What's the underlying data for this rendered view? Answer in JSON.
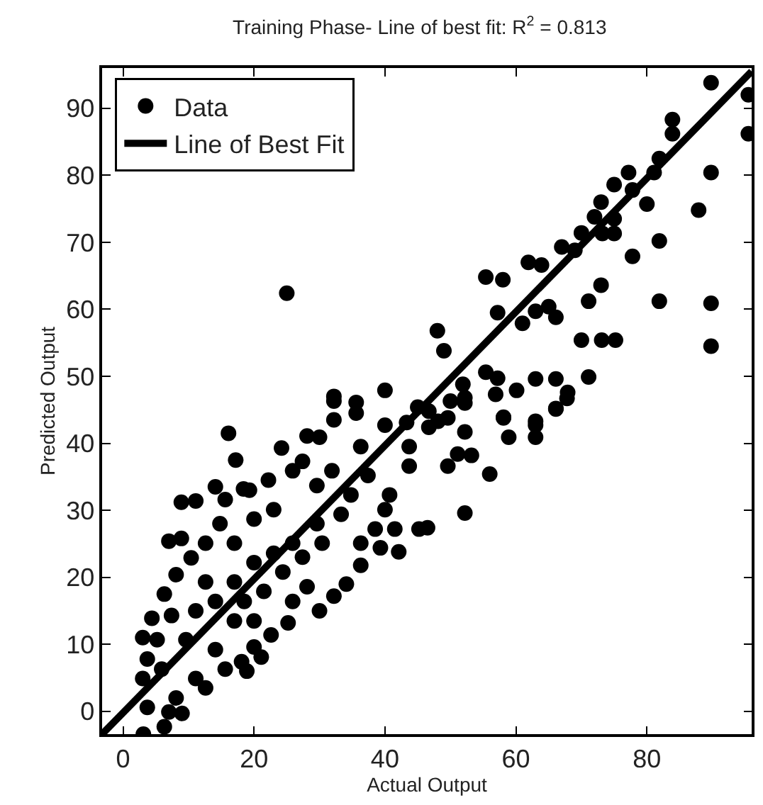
{
  "chart_data": {
    "type": "scatter",
    "title": "Training Phase- Line of best fit: R$^{2}$ = 0.813",
    "xlabel": "Actual Output",
    "ylabel": "Predicted Output",
    "xlim": [
      -3.2,
      96
    ],
    "ylim": [
      -3.4,
      96
    ],
    "xticks": [
      0,
      20,
      40,
      60,
      80
    ],
    "yticks": [
      0,
      10,
      20,
      30,
      40,
      50,
      60,
      70,
      80,
      90
    ],
    "legend": "top left",
    "series": [
      {
        "name": "Data",
        "color": "#000000",
        "marker": "circle",
        "x": [
          89.8,
          95.5,
          95.5,
          83.9,
          83.9,
          81.9,
          81.1,
          77.2,
          89.8,
          75,
          77.8,
          80,
          87.9,
          73,
          72,
          75,
          73.2,
          75,
          70,
          69,
          67,
          81.9,
          77.8,
          61.9,
          63.9,
          55.4,
          58,
          73,
          71.1,
          81.9,
          89.8,
          25,
          57.2,
          63,
          65,
          66.1,
          61,
          70,
          73.1,
          75.2,
          89.8,
          48,
          49,
          71.1,
          63,
          66.1,
          67.9,
          57.2,
          55.4,
          56.9,
          60.1,
          51.9,
          52.2,
          50,
          40,
          32.2,
          66.1,
          58.1,
          63,
          45,
          46.7,
          48.1,
          35.6,
          3.1,
          6.3,
          9,
          3,
          3,
          3.7,
          6.3,
          4.4,
          7,
          8.9,
          8.9,
          11.1,
          8.1,
          14.1,
          16.1,
          17.2,
          18.4,
          24.2,
          28.1,
          30,
          36.3,
          32.2,
          32.2,
          35.6,
          40,
          43.3,
          46.7,
          49.6,
          52.2,
          52.2,
          49.6,
          51.1,
          53.2,
          56,
          52.2,
          58.1,
          58.9,
          63,
          63,
          66.1,
          67.8,
          45.2,
          46.5,
          42.1,
          40.7,
          43.7,
          43.7,
          40,
          36.3,
          36.3,
          34.1,
          32.2,
          30,
          28.1,
          25.9,
          25.2,
          22.6,
          21.1,
          20,
          18.9,
          18.1,
          37.4,
          33.3,
          34.8,
          29.6,
          25.9,
          25.9,
          22.2,
          20,
          17,
          14.8,
          12.6,
          12.6,
          11.1,
          9.6,
          14.1,
          17,
          20,
          23,
          17,
          14.1,
          11.1,
          8.1,
          5.9,
          5.2,
          7.4,
          10.4,
          15.6,
          19.3,
          23,
          27.4,
          29.6,
          31.9,
          15.6,
          12.6,
          7,
          18.5,
          21.5,
          24.4,
          27.4,
          30.4,
          20,
          3.7,
          38.5,
          39.3,
          41.5
        ],
        "values": [
          93.8,
          92,
          86.2,
          88.3,
          86.2,
          82.5,
          80.4,
          80.4,
          80.4,
          78.6,
          77.8,
          75.7,
          74.8,
          76,
          73.8,
          73.5,
          71.3,
          71.3,
          71.4,
          68.8,
          69.3,
          70.2,
          67.9,
          67,
          66.6,
          64.8,
          64.4,
          63.6,
          61.2,
          61.2,
          60.9,
          62.4,
          59.5,
          59.7,
          60.4,
          58.8,
          57.9,
          55.4,
          55.4,
          55.4,
          54.5,
          56.8,
          53.8,
          49.9,
          49.6,
          49.6,
          47.6,
          49.7,
          50.6,
          47.3,
          47.9,
          48.8,
          46.8,
          46.3,
          47.9,
          47,
          45.2,
          43.9,
          43.3,
          45.4,
          44.8,
          43.3,
          46.1,
          -3.4,
          -2.3,
          -0.3,
          11,
          4.9,
          0.6,
          17.5,
          13.9,
          25.4,
          25.8,
          31.2,
          31.4,
          20.4,
          33.5,
          41.5,
          37.5,
          33.2,
          39.3,
          41.1,
          40.9,
          39.5,
          43.5,
          46.3,
          44.5,
          42.7,
          43.1,
          42.4,
          43.8,
          46,
          41.7,
          36.6,
          38.4,
          38.2,
          35.4,
          29.6,
          43.8,
          40.9,
          42.7,
          40.9,
          45.1,
          46.7,
          27.2,
          27.4,
          23.8,
          32.3,
          36.6,
          39.5,
          30.1,
          25.1,
          21.8,
          19,
          17.2,
          15,
          18.6,
          16.4,
          13.2,
          11.4,
          8.1,
          9.6,
          6,
          7.4,
          35.2,
          29.4,
          32.3,
          28,
          25.1,
          35.9,
          34.5,
          28.7,
          25.1,
          28,
          25.1,
          19.3,
          15,
          10.7,
          16.4,
          19.3,
          22.2,
          23.6,
          13.5,
          9.2,
          4.9,
          2,
          6.3,
          10.7,
          14.3,
          22.9,
          31.6,
          33,
          30.1,
          37.3,
          33.7,
          35.9,
          6.3,
          3.5,
          -0.1,
          16.4,
          17.9,
          20.8,
          23,
          25.1,
          13.5,
          7.8,
          27.2,
          24.4,
          27.2
        ]
      },
      {
        "name": "Line of Best Fit",
        "type": "line",
        "color": "#000000",
        "line_style": "solid",
        "x": [
          -3.2,
          96
        ],
        "values": [
          -3.4,
          95.5
        ]
      }
    ]
  }
}
